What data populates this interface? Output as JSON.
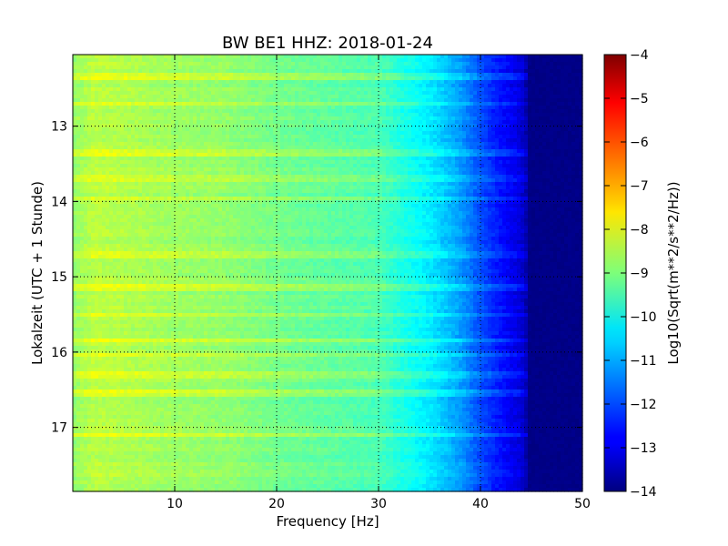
{
  "chart_data": {
    "type": "heatmap",
    "title": "BW BE1 HHZ: 2018-01-24",
    "xlabel": "Frequency [Hz]",
    "ylabel": "Lokalzeit (UTC + 1 Stunde)",
    "colorbar_label": "Log10(Sqrt(m**2/s**2/Hz))",
    "xlim": [
      0,
      50
    ],
    "ylim": [
      12.05,
      17.85
    ],
    "y_inverted": true,
    "x_ticks": [
      10,
      20,
      30,
      40,
      50
    ],
    "y_ticks": [
      13,
      14,
      15,
      16,
      17
    ],
    "colorbar_ticks": [
      -4,
      -5,
      -6,
      -7,
      -8,
      -9,
      -10,
      -11,
      -12,
      -13,
      -14
    ],
    "clim": [
      -14,
      -4
    ],
    "colormap": "jet",
    "grid": true,
    "spectral_profile": {
      "frequency_hz": [
        0,
        2,
        5,
        10,
        15,
        20,
        25,
        30,
        32,
        35,
        38,
        40,
        42,
        44,
        45,
        50
      ],
      "log10_amplitude": [
        -8.8,
        -8.4,
        -8.5,
        -8.7,
        -8.8,
        -9.1,
        -9.3,
        -9.5,
        -9.9,
        -10.4,
        -11.2,
        -12.0,
        -12.6,
        -13.1,
        -14.0,
        -14.0
      ]
    },
    "bright_bands_hours": [
      12.35,
      12.7,
      13.35,
      13.7,
      13.95,
      14.7,
      15.15,
      15.5,
      15.85,
      16.05,
      16.3,
      16.55,
      17.1
    ]
  }
}
